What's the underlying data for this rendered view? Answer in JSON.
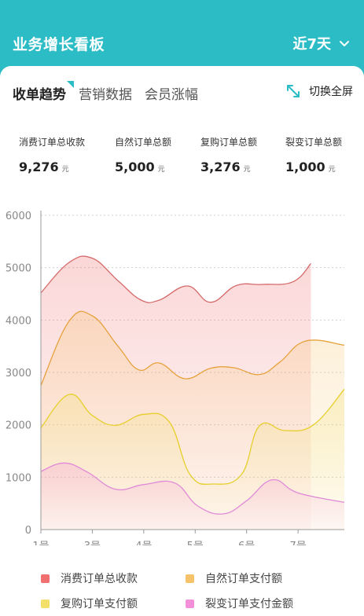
{
  "header": {
    "title": "业务增长看板",
    "range_label": "近7天"
  },
  "tabs": [
    {
      "label": "收单趋势",
      "active": true
    },
    {
      "label": "营销数据",
      "active": false
    },
    {
      "label": "会员涨幅",
      "active": false
    }
  ],
  "fullscreen_label": "切换全屏",
  "stats": [
    {
      "label": "消费订单总收款",
      "value": "9,276",
      "unit": "元"
    },
    {
      "label": "自然订单总额",
      "value": "5,000",
      "unit": "元"
    },
    {
      "label": "复购订单总额",
      "value": "3,276",
      "unit": "元"
    },
    {
      "label": "裂变订单总额",
      "value": "1,000",
      "unit": "元"
    }
  ],
  "colors": {
    "primary": "#2cbcc6",
    "series": [
      "#d46a6a",
      "#e6a23c",
      "#e6cf2a",
      "#e08ad8"
    ],
    "legend": [
      "#f07070",
      "#f7c36a",
      "#f2e06a",
      "#f48fd9"
    ]
  },
  "chart_data": {
    "type": "area",
    "ylim": [
      0,
      6000
    ],
    "yticks": [
      "0",
      "1000",
      "2000",
      "3000",
      "4000",
      "5000",
      "6000"
    ],
    "x_tick_labels": [
      "1号",
      "3号",
      "4号",
      "5号",
      "6号",
      "7号"
    ],
    "x_tick_positions": [
      0,
      1,
      2,
      3,
      4,
      5
    ],
    "xlim": [
      0,
      5.9
    ],
    "grid": true,
    "legend_position": "bottom",
    "series": [
      {
        "name": "消费订单总收款",
        "x": [
          0,
          0.55,
          1.0,
          1.5,
          1.95,
          2.3,
          2.85,
          3.3,
          3.8,
          4.3,
          4.9,
          5.25
        ],
        "values": [
          4520,
          5100,
          5180,
          4750,
          4380,
          4380,
          4650,
          4340,
          4660,
          4680,
          4730,
          5080
        ]
      },
      {
        "name": "自然订单支付额",
        "x": [
          0,
          0.55,
          1.0,
          1.5,
          1.9,
          2.3,
          2.8,
          3.3,
          3.75,
          4.25,
          4.65,
          5.15,
          5.9
        ],
        "values": [
          2750,
          3980,
          4080,
          3500,
          3050,
          3180,
          2880,
          3080,
          3090,
          2960,
          3200,
          3600,
          3520
        ]
      },
      {
        "name": "复购订单支付额",
        "x": [
          0,
          0.55,
          1.0,
          1.45,
          2.0,
          2.5,
          2.9,
          3.35,
          3.9,
          4.25,
          4.75,
          5.3,
          5.9
        ],
        "values": [
          1940,
          2580,
          2180,
          1990,
          2200,
          2050,
          1050,
          870,
          1050,
          1980,
          1890,
          2000,
          2680
        ]
      },
      {
        "name": "裂变订单支付金额",
        "x": [
          0,
          0.45,
          0.9,
          1.45,
          2.0,
          2.6,
          3.05,
          3.55,
          4.0,
          4.5,
          5.0,
          5.9
        ],
        "values": [
          1110,
          1270,
          1100,
          770,
          860,
          890,
          450,
          300,
          550,
          950,
          700,
          520
        ]
      }
    ]
  }
}
